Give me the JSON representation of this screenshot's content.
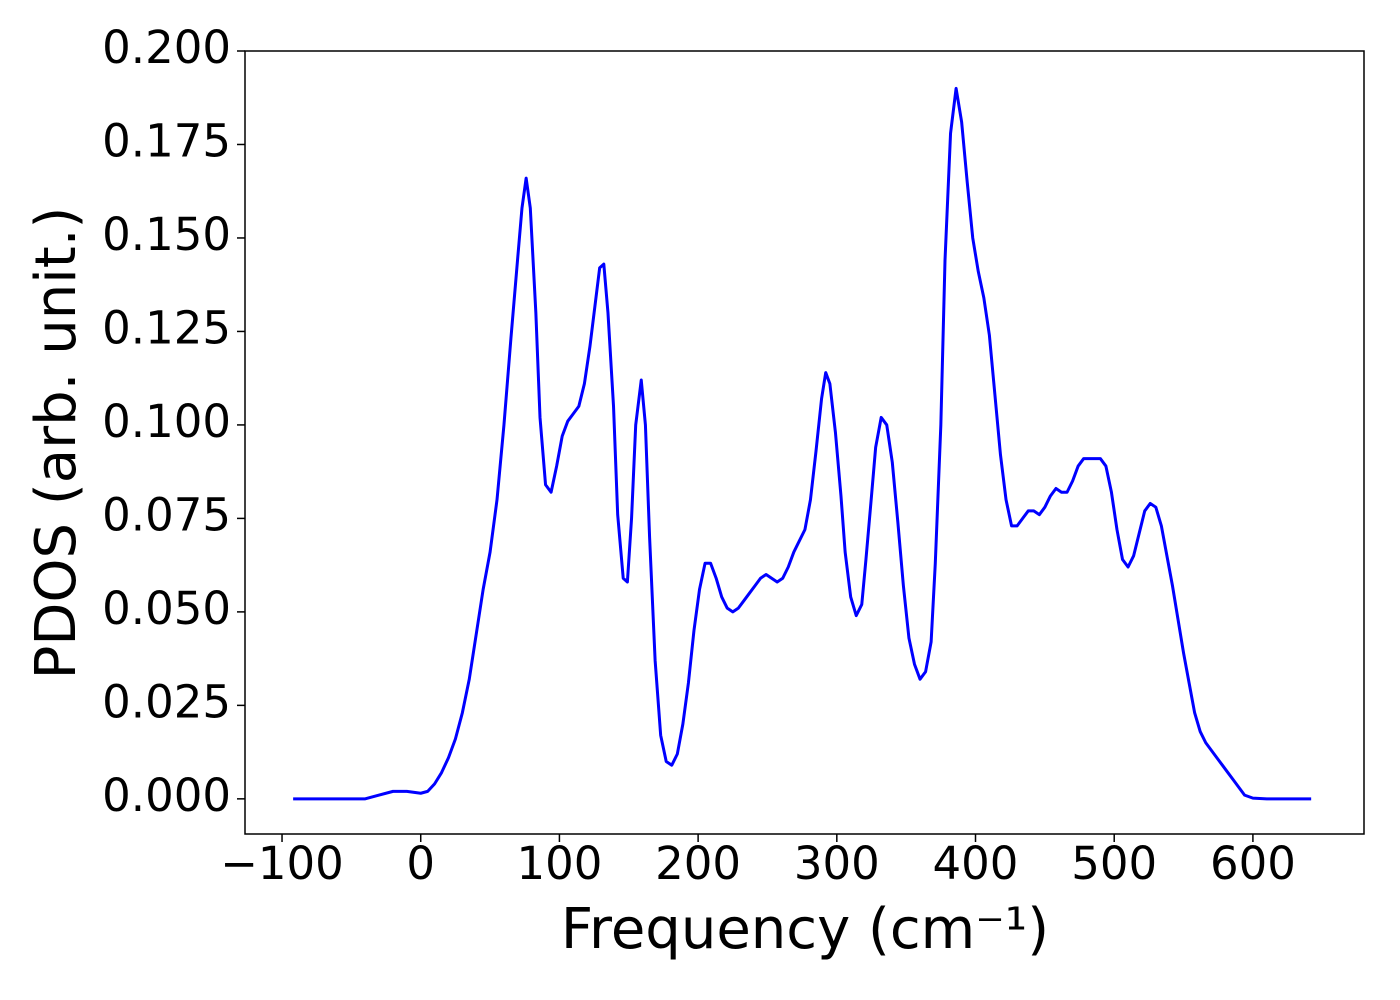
{
  "chart_data": {
    "type": "line",
    "x_label": "Frequency (cm⁻¹)",
    "y_label": "PDOS (arb. unit.)",
    "xlim": [
      -126.7,
      680.1
    ],
    "ylim": [
      -0.0094,
      0.2
    ],
    "xticks": [
      {
        "value": -100,
        "label": "−100"
      },
      0,
      100,
      200,
      300,
      400,
      500,
      600
    ],
    "yticks": [
      {
        "value": 0,
        "label": "0.000"
      },
      {
        "value": 0.025,
        "label": "0.025"
      },
      {
        "value": 0.05,
        "label": "0.050"
      },
      {
        "value": 0.075,
        "label": "0.075"
      },
      {
        "value": 0.1,
        "label": "0.100"
      },
      {
        "value": 0.125,
        "label": "0.125"
      },
      {
        "value": 0.15,
        "label": "0.150"
      },
      {
        "value": 0.175,
        "label": "0.175"
      },
      {
        "value": 0.2,
        "label": "0.200"
      }
    ],
    "grid": false,
    "x": [
      -92,
      -40,
      -30,
      -20,
      -10,
      0,
      5,
      10,
      15,
      20,
      25,
      30,
      35,
      40,
      45,
      50,
      55,
      60,
      65,
      70,
      73,
      76,
      79,
      83,
      86,
      90,
      94,
      98,
      102,
      106,
      110,
      114,
      118,
      122,
      126,
      129,
      132,
      135,
      139,
      142,
      146,
      149,
      152,
      155,
      159,
      162,
      165,
      169,
      173,
      177,
      181,
      185,
      189,
      193,
      197,
      201,
      205,
      209,
      213,
      217,
      221,
      225,
      229,
      233,
      237,
      241,
      245,
      249,
      253,
      257,
      261,
      265,
      269,
      273,
      277,
      281,
      285,
      289,
      292,
      295,
      299,
      303,
      306,
      310,
      314,
      318,
      321,
      325,
      328,
      332,
      336,
      340,
      344,
      348,
      352,
      356,
      360,
      364,
      368,
      371,
      375,
      378,
      382,
      386,
      390,
      394,
      398,
      402,
      406,
      410,
      414,
      418,
      422,
      426,
      430,
      434,
      438,
      442,
      446,
      450,
      454,
      458,
      462,
      466,
      470,
      474,
      478,
      482,
      486,
      490,
      494,
      498,
      502,
      506,
      510,
      514,
      518,
      522,
      526,
      530,
      534,
      538,
      542,
      546,
      550,
      554,
      558,
      562,
      566,
      570,
      574,
      578,
      582,
      586,
      590,
      594,
      600,
      610,
      642
    ],
    "series": [
      {
        "color": "#0000ff",
        "values": [
          0,
          0,
          0.001,
          0.002,
          0.002,
          0.0015,
          0.002,
          0.004,
          0.007,
          0.011,
          0.016,
          0.023,
          0.032,
          0.044,
          0.056,
          0.066,
          0.08,
          0.1,
          0.123,
          0.145,
          0.158,
          0.166,
          0.158,
          0.13,
          0.102,
          0.084,
          0.082,
          0.089,
          0.097,
          0.101,
          0.103,
          0.105,
          0.111,
          0.121,
          0.133,
          0.142,
          0.143,
          0.13,
          0.105,
          0.076,
          0.059,
          0.058,
          0.075,
          0.1,
          0.112,
          0.1,
          0.07,
          0.037,
          0.017,
          0.01,
          0.009,
          0.012,
          0.02,
          0.031,
          0.045,
          0.056,
          0.063,
          0.063,
          0.059,
          0.054,
          0.051,
          0.05,
          0.051,
          0.053,
          0.055,
          0.057,
          0.059,
          0.06,
          0.059,
          0.058,
          0.059,
          0.062,
          0.066,
          0.069,
          0.072,
          0.08,
          0.093,
          0.107,
          0.114,
          0.111,
          0.098,
          0.081,
          0.066,
          0.054,
          0.049,
          0.052,
          0.064,
          0.081,
          0.094,
          0.102,
          0.1,
          0.09,
          0.074,
          0.057,
          0.043,
          0.036,
          0.032,
          0.034,
          0.042,
          0.063,
          0.1,
          0.144,
          0.178,
          0.19,
          0.181,
          0.165,
          0.15,
          0.141,
          0.134,
          0.124,
          0.108,
          0.092,
          0.08,
          0.073,
          0.073,
          0.075,
          0.077,
          0.077,
          0.076,
          0.078,
          0.081,
          0.083,
          0.082,
          0.082,
          0.085,
          0.089,
          0.091,
          0.091,
          0.091,
          0.091,
          0.089,
          0.082,
          0.072,
          0.064,
          0.062,
          0.065,
          0.071,
          0.077,
          0.079,
          0.078,
          0.073,
          0.065,
          0.057,
          0.048,
          0.039,
          0.031,
          0.023,
          0.018,
          0.015,
          0.013,
          0.011,
          0.009,
          0.007,
          0.005,
          0.003,
          0.001,
          0.0002,
          0,
          0
        ]
      }
    ]
  }
}
